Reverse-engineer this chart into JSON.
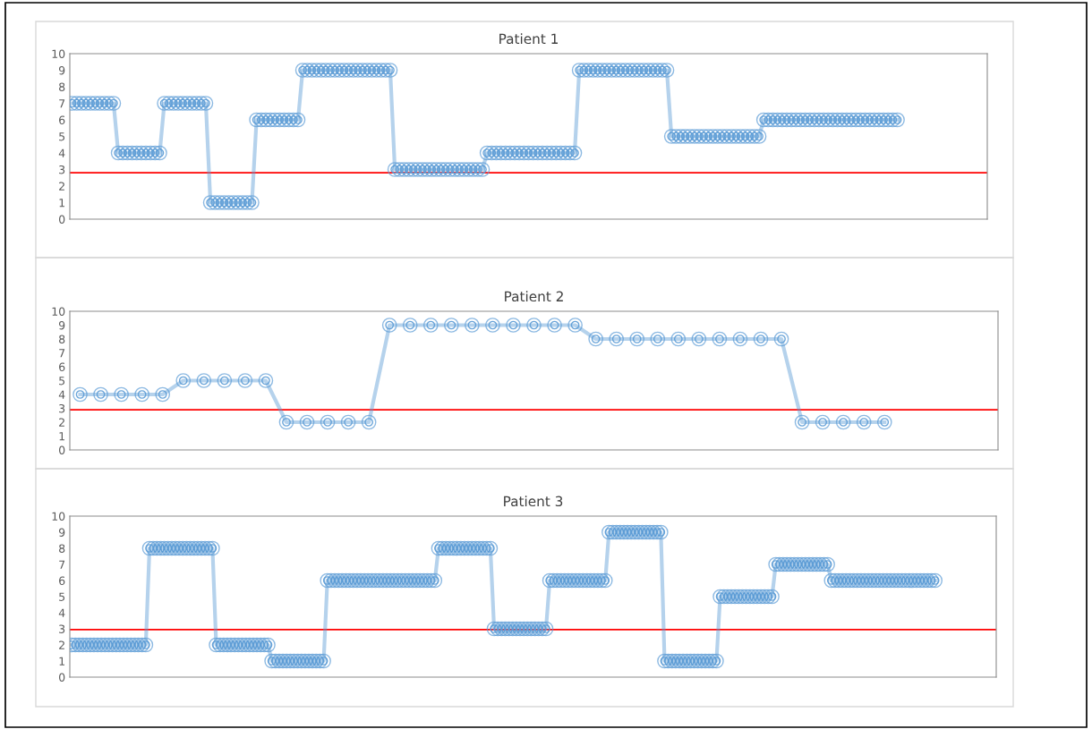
{
  "chart_data": [
    {
      "type": "line",
      "title": "Patient 1",
      "ylim": [
        0,
        10
      ],
      "yticks": [
        0,
        1,
        2,
        3,
        4,
        5,
        6,
        7,
        8,
        9,
        10
      ],
      "tick_labels": "y",
      "marker": "circle",
      "grid": false,
      "legend": false,
      "categories": [
        null,
        null,
        null,
        null,
        null,
        null,
        null,
        null,
        null,
        null,
        null,
        null,
        null,
        null,
        null,
        null,
        null,
        null,
        null,
        null,
        null,
        null,
        null,
        null,
        null,
        null,
        null,
        null,
        null,
        null,
        null,
        null,
        null,
        null,
        null,
        null,
        null,
        null,
        null,
        null,
        null,
        null,
        null,
        null,
        null,
        null,
        null,
        null,
        null,
        null,
        null,
        null,
        null,
        null,
        null,
        null,
        null,
        null,
        null,
        null,
        null,
        null,
        null,
        null,
        null,
        null,
        null,
        null,
        null,
        null,
        null,
        null,
        null,
        null,
        null,
        null,
        null,
        null,
        null,
        null,
        null,
        null,
        null,
        null,
        null,
        null,
        null,
        null,
        null,
        null,
        null,
        null,
        null,
        null,
        null,
        null,
        null,
        null,
        null,
        null,
        null,
        null,
        null,
        null,
        null,
        null,
        null,
        null,
        null,
        null,
        null,
        null,
        null,
        null,
        null,
        null,
        null,
        null,
        null,
        null,
        null,
        null,
        null,
        null,
        null,
        null,
        null,
        null,
        null,
        null,
        null,
        null,
        null,
        null,
        null,
        null,
        null,
        null,
        null,
        null,
        null,
        null,
        null,
        null,
        null,
        null,
        null,
        null,
        null,
        null,
        null,
        null,
        null,
        null,
        null,
        null,
        null,
        null,
        null,
        null,
        null,
        null,
        null,
        null,
        null,
        null,
        null,
        null,
        null,
        null,
        null,
        null,
        null,
        null,
        null,
        null,
        null,
        null,
        null,
        null,
        null,
        null,
        null,
        null,
        null,
        null,
        null,
        null,
        null,
        null,
        null,
        null,
        null,
        null,
        null,
        null,
        null,
        null,
        null
      ],
      "series": [
        {
          "color": "#5b9bd5",
          "values": [
            7,
            7,
            7,
            7,
            7,
            7,
            7,
            7,
            7,
            7,
            4,
            4,
            4,
            4,
            4,
            4,
            4,
            4,
            4,
            4,
            7,
            7,
            7,
            7,
            7,
            7,
            7,
            7,
            7,
            7,
            1,
            1,
            1,
            1,
            1,
            1,
            1,
            1,
            1,
            1,
            6,
            6,
            6,
            6,
            6,
            6,
            6,
            6,
            6,
            6,
            9,
            9,
            9,
            9,
            9,
            9,
            9,
            9,
            9,
            9,
            9,
            9,
            9,
            9,
            9,
            9,
            9,
            9,
            9,
            9,
            3,
            3,
            3,
            3,
            3,
            3,
            3,
            3,
            3,
            3,
            3,
            3,
            3,
            3,
            3,
            3,
            3,
            3,
            3,
            3,
            4,
            4,
            4,
            4,
            4,
            4,
            4,
            4,
            4,
            4,
            4,
            4,
            4,
            4,
            4,
            4,
            4,
            4,
            4,
            4,
            9,
            9,
            9,
            9,
            9,
            9,
            9,
            9,
            9,
            9,
            9,
            9,
            9,
            9,
            9,
            9,
            9,
            9,
            9,
            9,
            5,
            5,
            5,
            5,
            5,
            5,
            5,
            5,
            5,
            5,
            5,
            5,
            5,
            5,
            5,
            5,
            5,
            5,
            5,
            5,
            6,
            6,
            6,
            6,
            6,
            6,
            6,
            6,
            6,
            6,
            6,
            6,
            6,
            6,
            6,
            6,
            6,
            6,
            6,
            6,
            6,
            6,
            6,
            6,
            6,
            6,
            6,
            6,
            6,
            6,
            null,
            null,
            null,
            null,
            null,
            null,
            null,
            null,
            null,
            null,
            null,
            null,
            null,
            null,
            null,
            null,
            null,
            null,
            null
          ]
        }
      ],
      "ref_lines": [
        {
          "axis": "y",
          "value": 2.8,
          "color": "#ff0000"
        }
      ]
    },
    {
      "type": "line",
      "title": "Patient 2",
      "ylim": [
        0,
        10
      ],
      "yticks": [
        0,
        1,
        2,
        3,
        4,
        5,
        6,
        7,
        8,
        9,
        10
      ],
      "tick_labels": "y",
      "marker": "circle",
      "grid": false,
      "legend": false,
      "categories": [
        null,
        null,
        null,
        null,
        null,
        null,
        null,
        null,
        null,
        null,
        null,
        null,
        null,
        null,
        null,
        null,
        null,
        null,
        null,
        null,
        null,
        null,
        null,
        null,
        null,
        null,
        null,
        null,
        null,
        null,
        null,
        null,
        null,
        null,
        null,
        null,
        null,
        null,
        null,
        null,
        null,
        null,
        null,
        null,
        null
      ],
      "series": [
        {
          "color": "#5b9bd5",
          "values": [
            4,
            4,
            4,
            4,
            4,
            5,
            5,
            5,
            5,
            5,
            2,
            2,
            2,
            2,
            2,
            9,
            9,
            9,
            9,
            9,
            9,
            9,
            9,
            9,
            9,
            8,
            8,
            8,
            8,
            8,
            8,
            8,
            8,
            8,
            8,
            2,
            2,
            2,
            2,
            2,
            null,
            null,
            null,
            null,
            null
          ]
        }
      ],
      "ref_lines": [
        {
          "axis": "y",
          "value": 2.9,
          "color": "#ff0000"
        }
      ]
    },
    {
      "type": "line",
      "title": "Patient 3",
      "ylim": [
        0,
        10
      ],
      "yticks": [
        0,
        1,
        2,
        3,
        4,
        5,
        6,
        7,
        8,
        9,
        10
      ],
      "tick_labels": "y",
      "marker": "circle",
      "grid": false,
      "legend": false,
      "categories": [
        null,
        null,
        null,
        null,
        null,
        null,
        null,
        null,
        null,
        null,
        null,
        null,
        null,
        null,
        null,
        null,
        null,
        null,
        null,
        null,
        null,
        null,
        null,
        null,
        null,
        null,
        null,
        null,
        null,
        null,
        null,
        null,
        null,
        null,
        null,
        null,
        null,
        null,
        null,
        null,
        null,
        null,
        null,
        null,
        null,
        null,
        null,
        null,
        null,
        null,
        null,
        null,
        null,
        null,
        null,
        null,
        null,
        null,
        null,
        null,
        null,
        null,
        null,
        null,
        null,
        null,
        null,
        null,
        null,
        null,
        null,
        null,
        null,
        null,
        null,
        null,
        null,
        null,
        null,
        null,
        null,
        null,
        null,
        null,
        null,
        null,
        null,
        null,
        null,
        null,
        null,
        null,
        null,
        null,
        null,
        null,
        null,
        null,
        null,
        null,
        null,
        null,
        null,
        null,
        null,
        null,
        null,
        null,
        null,
        null,
        null,
        null,
        null,
        null,
        null,
        null,
        null,
        null,
        null,
        null,
        null,
        null,
        null,
        null,
        null,
        null,
        null,
        null,
        null,
        null,
        null,
        null,
        null,
        null,
        null,
        null,
        null,
        null,
        null,
        null,
        null,
        null,
        null,
        null,
        null,
        null,
        null,
        null,
        null,
        null,
        null,
        null,
        null,
        null,
        null,
        null,
        null,
        null,
        null,
        null,
        null,
        null,
        null,
        null,
        null,
        null,
        null,
        null,
        null,
        null,
        null,
        null,
        null,
        null,
        null,
        null,
        null,
        null,
        null,
        null,
        null,
        null,
        null,
        null,
        null,
        null,
        null,
        null,
        null,
        null,
        null,
        null,
        null,
        null,
        null,
        null,
        null,
        null,
        null,
        null,
        null,
        null,
        null,
        null,
        null,
        null,
        null,
        null,
        null,
        null,
        null,
        null,
        null,
        null,
        null,
        null,
        null,
        null,
        null,
        null,
        null,
        null,
        null,
        null,
        null,
        null,
        null,
        null,
        null,
        null,
        null,
        null,
        null,
        null,
        null,
        null,
        null,
        null,
        null,
        null,
        null,
        null,
        null,
        null,
        null,
        null,
        null,
        null,
        null,
        null
      ],
      "series": [
        {
          "color": "#5b9bd5",
          "values": [
            2,
            2,
            2,
            2,
            2,
            2,
            2,
            2,
            2,
            2,
            2,
            2,
            2,
            2,
            2,
            2,
            2,
            2,
            2,
            2,
            2,
            8,
            8,
            8,
            8,
            8,
            8,
            8,
            8,
            8,
            8,
            8,
            8,
            8,
            8,
            8,
            8,
            8,
            8,
            2,
            2,
            2,
            2,
            2,
            2,
            2,
            2,
            2,
            2,
            2,
            2,
            2,
            2,
            2,
            1,
            1,
            1,
            1,
            1,
            1,
            1,
            1,
            1,
            1,
            1,
            1,
            1,
            1,
            1,
            6,
            6,
            6,
            6,
            6,
            6,
            6,
            6,
            6,
            6,
            6,
            6,
            6,
            6,
            6,
            6,
            6,
            6,
            6,
            6,
            6,
            6,
            6,
            6,
            6,
            6,
            6,
            6,
            6,
            6,
            8,
            8,
            8,
            8,
            8,
            8,
            8,
            8,
            8,
            8,
            8,
            8,
            8,
            8,
            8,
            3,
            3,
            3,
            3,
            3,
            3,
            3,
            3,
            3,
            3,
            3,
            3,
            3,
            3,
            3,
            6,
            6,
            6,
            6,
            6,
            6,
            6,
            6,
            6,
            6,
            6,
            6,
            6,
            6,
            6,
            6,
            9,
            9,
            9,
            9,
            9,
            9,
            9,
            9,
            9,
            9,
            9,
            9,
            9,
            9,
            9,
            1,
            1,
            1,
            1,
            1,
            1,
            1,
            1,
            1,
            1,
            1,
            1,
            1,
            1,
            1,
            5,
            5,
            5,
            5,
            5,
            5,
            5,
            5,
            5,
            5,
            5,
            5,
            5,
            5,
            5,
            7,
            7,
            7,
            7,
            7,
            7,
            7,
            7,
            7,
            7,
            7,
            7,
            7,
            7,
            7,
            6,
            6,
            6,
            6,
            6,
            6,
            6,
            6,
            6,
            6,
            6,
            6,
            6,
            6,
            6,
            6,
            6,
            6,
            6,
            6,
            6,
            6,
            6,
            6,
            6,
            6,
            6,
            6,
            6,
            null,
            null,
            null,
            null,
            null,
            null,
            null,
            null,
            null,
            null,
            null,
            null,
            null,
            null,
            null,
            null
          ]
        }
      ],
      "ref_lines": [
        {
          "axis": "y",
          "value": 2.95,
          "color": "#ff0000"
        }
      ]
    }
  ]
}
